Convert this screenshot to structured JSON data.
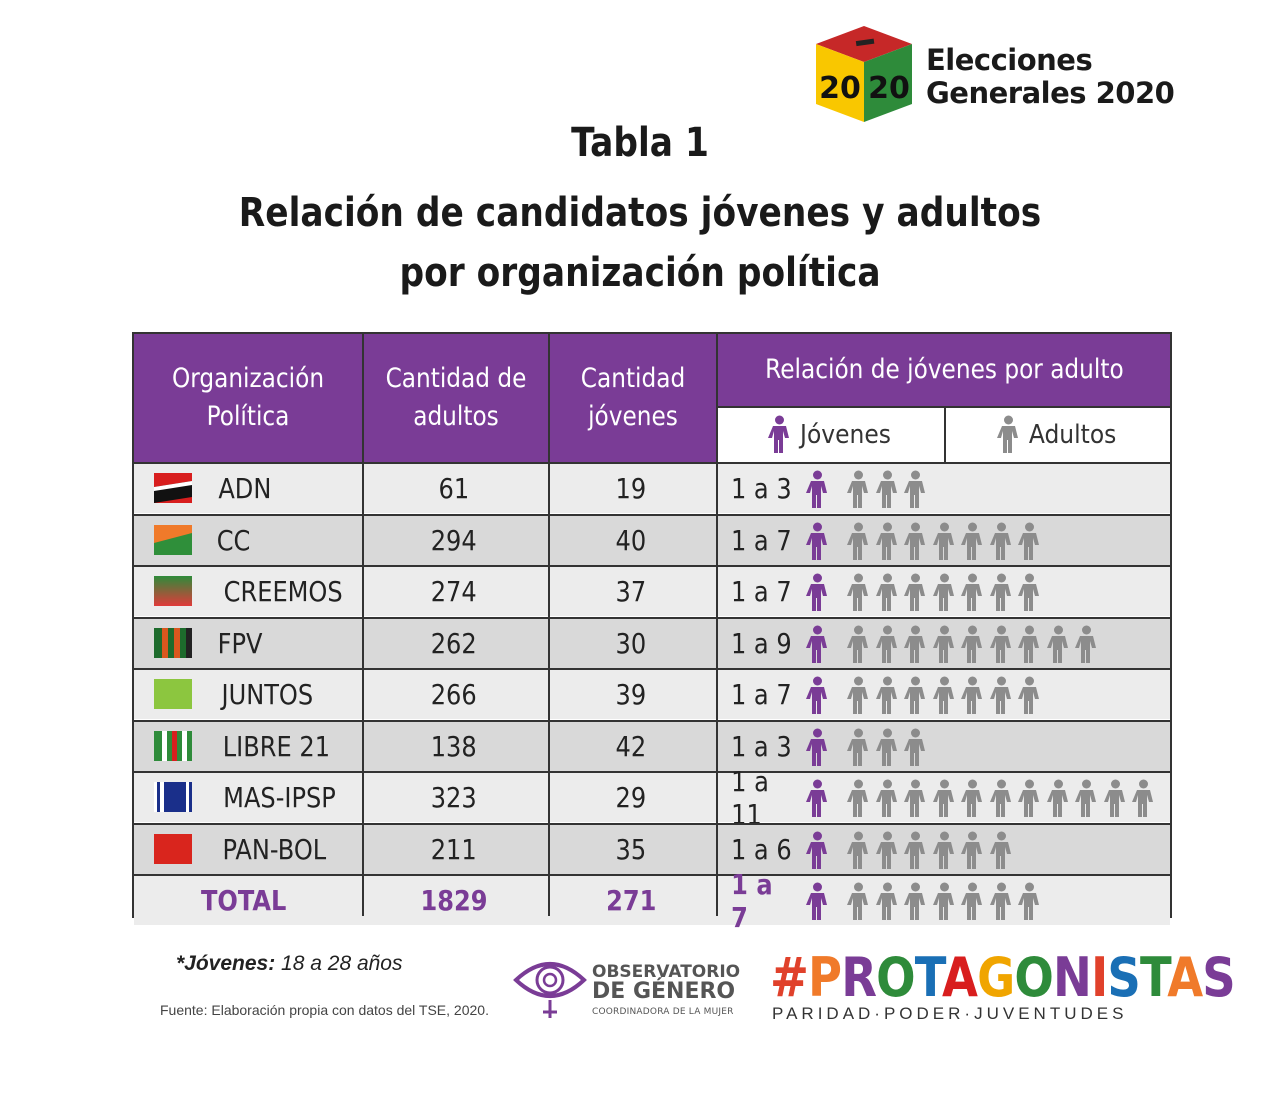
{
  "logo": {
    "year": "2020",
    "line1": "Elecciones",
    "line2": "Generales 2020"
  },
  "title": {
    "line1": "Tabla 1",
    "line2": "Relación de candidatos jóvenes y adultos",
    "line3": "por organización política"
  },
  "table": {
    "headers": {
      "org": "Organización Política",
      "adults": "Cantidad de adultos",
      "youth": "Cantidad jóvenes",
      "relation": "Relación de jóvenes por adulto",
      "legend_youth": "Jóvenes",
      "legend_adults": "Adultos"
    },
    "rows": [
      {
        "org": "ADN",
        "adults": "61",
        "youth": "19",
        "ratio": "1 a 3",
        "adult_icons": 3,
        "flag": "adn"
      },
      {
        "org": "CC",
        "adults": "294",
        "youth": "40",
        "ratio": "1 a 7",
        "adult_icons": 7,
        "flag": "cc"
      },
      {
        "org": "CREEMOS",
        "adults": "274",
        "youth": "37",
        "ratio": "1 a 7",
        "adult_icons": 7,
        "flag": "creemos"
      },
      {
        "org": "FPV",
        "adults": "262",
        "youth": "30",
        "ratio": "1 a 9",
        "adult_icons": 9,
        "flag": "fpv"
      },
      {
        "org": "JUNTOS",
        "adults": "266",
        "youth": "39",
        "ratio": "1 a 7",
        "adult_icons": 7,
        "flag": "juntos"
      },
      {
        "org": "LIBRE 21",
        "adults": "138",
        "youth": "42",
        "ratio": "1 a 3",
        "adult_icons": 3,
        "flag": "libre21"
      },
      {
        "org": "MAS-IPSP",
        "adults": "323",
        "youth": "29",
        "ratio": "1 a 11",
        "adult_icons": 11,
        "flag": "mas"
      },
      {
        "org": "PAN-BOL",
        "adults": "211",
        "youth": "35",
        "ratio": "1 a 6",
        "adult_icons": 6,
        "flag": "panbol"
      }
    ],
    "total": {
      "org": "TOTAL",
      "adults": "1829",
      "youth": "271",
      "ratio": "1 a 7",
      "adult_icons": 7
    }
  },
  "footer": {
    "note_label": "*Jóvenes:",
    "note_value": " 18 a 28 años",
    "source": "Fuente: Elaboración propia con datos del TSE, 2020.",
    "observatorio": {
      "line1": "OBSERVATORIO",
      "line2": "DE GÉNERO",
      "line3": "COORDINADORA DE LA MUJER"
    },
    "protagonistas": "#PROTAGONISTAS",
    "protagonistas_sub": "PARIDAD·PODER·JUVENTUDES"
  },
  "colors": {
    "purple": "#7a3c96",
    "gray_icon": "#8c8c8c",
    "row_alt": "#d9d9d9"
  }
}
